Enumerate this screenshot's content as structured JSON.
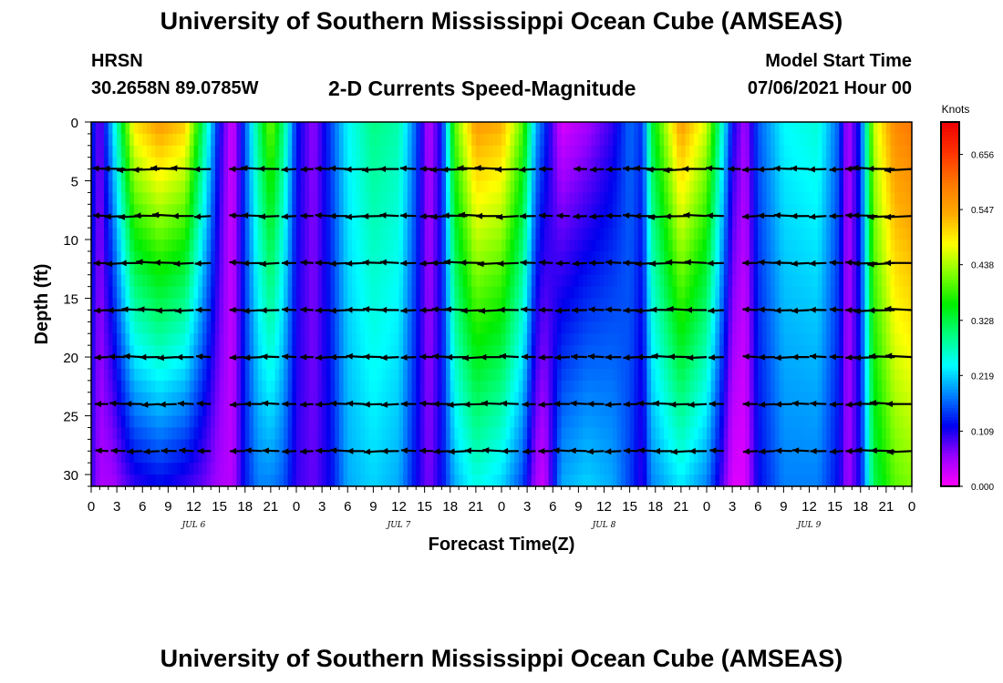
{
  "page": {
    "title_top": "University of Southern Mississippi Ocean Cube (AMSEAS)",
    "title_bottom": "University of Southern Mississippi Ocean Cube (AMSEAS)",
    "station": "HRSN",
    "coordinates": "30.2658N  89.0785W",
    "subtitle": "2-D Currents Speed-Magnitude",
    "model_start_label": "Model Start Time",
    "model_start_value": "07/06/2021 Hour 00"
  },
  "chart_data": {
    "type": "heatmap",
    "title": "2-D Currents Speed-Magnitude",
    "xlabel": "Forecast Time(Z)",
    "ylabel": "Depth (ft)",
    "x_range_hours": [
      0,
      96
    ],
    "x_tick_step_hours": 3,
    "x_tick_labels": [
      "0",
      "3",
      "6",
      "9",
      "12",
      "15",
      "18",
      "21",
      "0",
      "3",
      "6",
      "9",
      "12",
      "15",
      "18",
      "21",
      "0",
      "3",
      "6",
      "9",
      "12",
      "15",
      "18",
      "21",
      "0",
      "3",
      "6",
      "9",
      "12",
      "15",
      "18",
      "21",
      "0"
    ],
    "date_labels": [
      {
        "text": "JUL 6",
        "hour": 12
      },
      {
        "text": "JUL 7",
        "hour": 36
      },
      {
        "text": "JUL 8",
        "hour": 60
      },
      {
        "text": "JUL 9",
        "hour": 84
      }
    ],
    "y_range": [
      0,
      31
    ],
    "y_inverted": true,
    "y_ticks": [
      0,
      5,
      10,
      15,
      20,
      25,
      30
    ],
    "colorbar": {
      "unit": "Knots",
      "range": [
        0,
        0.72
      ],
      "tick_labels": [
        "0.000",
        "0.109",
        "0.219",
        "0.328",
        "0.438",
        "0.547",
        "0.656"
      ],
      "colors": [
        "#ff00ff",
        "#9900ff",
        "#0000ee",
        "#0080ff",
        "#00ffff",
        "#00ff80",
        "#00ee00",
        "#80ff00",
        "#ffff00",
        "#ffaa00",
        "#ff7700",
        "#ff3300",
        "#ee0000"
      ]
    },
    "arrow_depths_ft": [
      4,
      8,
      12,
      16,
      20,
      24,
      28
    ],
    "arrow_step_hours": 2,
    "speed_profile": [
      {
        "hour": 0,
        "top": 0.15,
        "bottom": 0.1
      },
      {
        "hour": 1,
        "top": 0.07,
        "bottom": 0.05
      },
      {
        "hour": 2.5,
        "top": 0.22,
        "bottom": 0.05
      },
      {
        "hour": 5,
        "top": 0.5,
        "bottom": 0.1
      },
      {
        "hour": 8,
        "top": 0.56,
        "bottom": 0.12
      },
      {
        "hour": 11,
        "top": 0.52,
        "bottom": 0.1
      },
      {
        "hour": 13,
        "top": 0.32,
        "bottom": 0.08
      },
      {
        "hour": 15,
        "top": 0.12,
        "bottom": 0.05
      },
      {
        "hour": 16.5,
        "top": 0.02,
        "bottom": 0.04
      },
      {
        "hour": 18,
        "top": 0.16,
        "bottom": 0.13
      },
      {
        "hour": 19.5,
        "top": 0.3,
        "bottom": 0.18
      },
      {
        "hour": 21,
        "top": 0.42,
        "bottom": 0.18
      },
      {
        "hour": 22.5,
        "top": 0.3,
        "bottom": 0.16
      },
      {
        "hour": 24,
        "top": 0.13,
        "bottom": 0.1
      },
      {
        "hour": 26,
        "top": 0.06,
        "bottom": 0.08
      },
      {
        "hour": 28,
        "top": 0.15,
        "bottom": 0.12
      },
      {
        "hour": 30,
        "top": 0.24,
        "bottom": 0.2
      },
      {
        "hour": 33,
        "top": 0.3,
        "bottom": 0.22
      },
      {
        "hour": 36,
        "top": 0.28,
        "bottom": 0.2
      },
      {
        "hour": 38,
        "top": 0.16,
        "bottom": 0.12
      },
      {
        "hour": 39.5,
        "top": 0.04,
        "bottom": 0.07
      },
      {
        "hour": 41,
        "top": 0.12,
        "bottom": 0.12
      },
      {
        "hour": 42.5,
        "top": 0.4,
        "bottom": 0.2
      },
      {
        "hour": 45,
        "top": 0.56,
        "bottom": 0.25
      },
      {
        "hour": 48,
        "top": 0.54,
        "bottom": 0.22
      },
      {
        "hour": 50.5,
        "top": 0.4,
        "bottom": 0.15
      },
      {
        "hour": 52,
        "top": 0.2,
        "bottom": 0.05
      },
      {
        "hour": 53,
        "top": 0.15,
        "bottom": 0.03
      },
      {
        "hour": 55,
        "top": 0.02,
        "bottom": 0.2
      },
      {
        "hour": 58,
        "top": 0.05,
        "bottom": 0.22
      },
      {
        "hour": 61,
        "top": 0.1,
        "bottom": 0.2
      },
      {
        "hour": 63,
        "top": 0.17,
        "bottom": 0.15
      },
      {
        "hour": 64.5,
        "top": 0.14,
        "bottom": 0.1
      },
      {
        "hour": 65.5,
        "top": 0.33,
        "bottom": 0.18
      },
      {
        "hour": 69,
        "top": 0.56,
        "bottom": 0.23
      },
      {
        "hour": 72,
        "top": 0.46,
        "bottom": 0.18
      },
      {
        "hour": 74,
        "top": 0.24,
        "bottom": 0.08
      },
      {
        "hour": 75,
        "top": 0.12,
        "bottom": 0.02
      },
      {
        "hour": 76.5,
        "top": 0.05,
        "bottom": 0.02
      },
      {
        "hour": 78,
        "top": 0.16,
        "bottom": 0.12
      },
      {
        "hour": 81,
        "top": 0.24,
        "bottom": 0.18
      },
      {
        "hour": 85,
        "top": 0.26,
        "bottom": 0.18
      },
      {
        "hour": 87.5,
        "top": 0.16,
        "bottom": 0.12
      },
      {
        "hour": 88.5,
        "top": 0.04,
        "bottom": 0.05
      },
      {
        "hour": 90,
        "top": 0.14,
        "bottom": 0.12
      },
      {
        "hour": 91.5,
        "top": 0.45,
        "bottom": 0.32
      },
      {
        "hour": 94,
        "top": 0.58,
        "bottom": 0.4
      },
      {
        "hour": 96,
        "top": 0.6,
        "bottom": 0.42
      }
    ],
    "grid": false,
    "legend": "right colorbar"
  }
}
